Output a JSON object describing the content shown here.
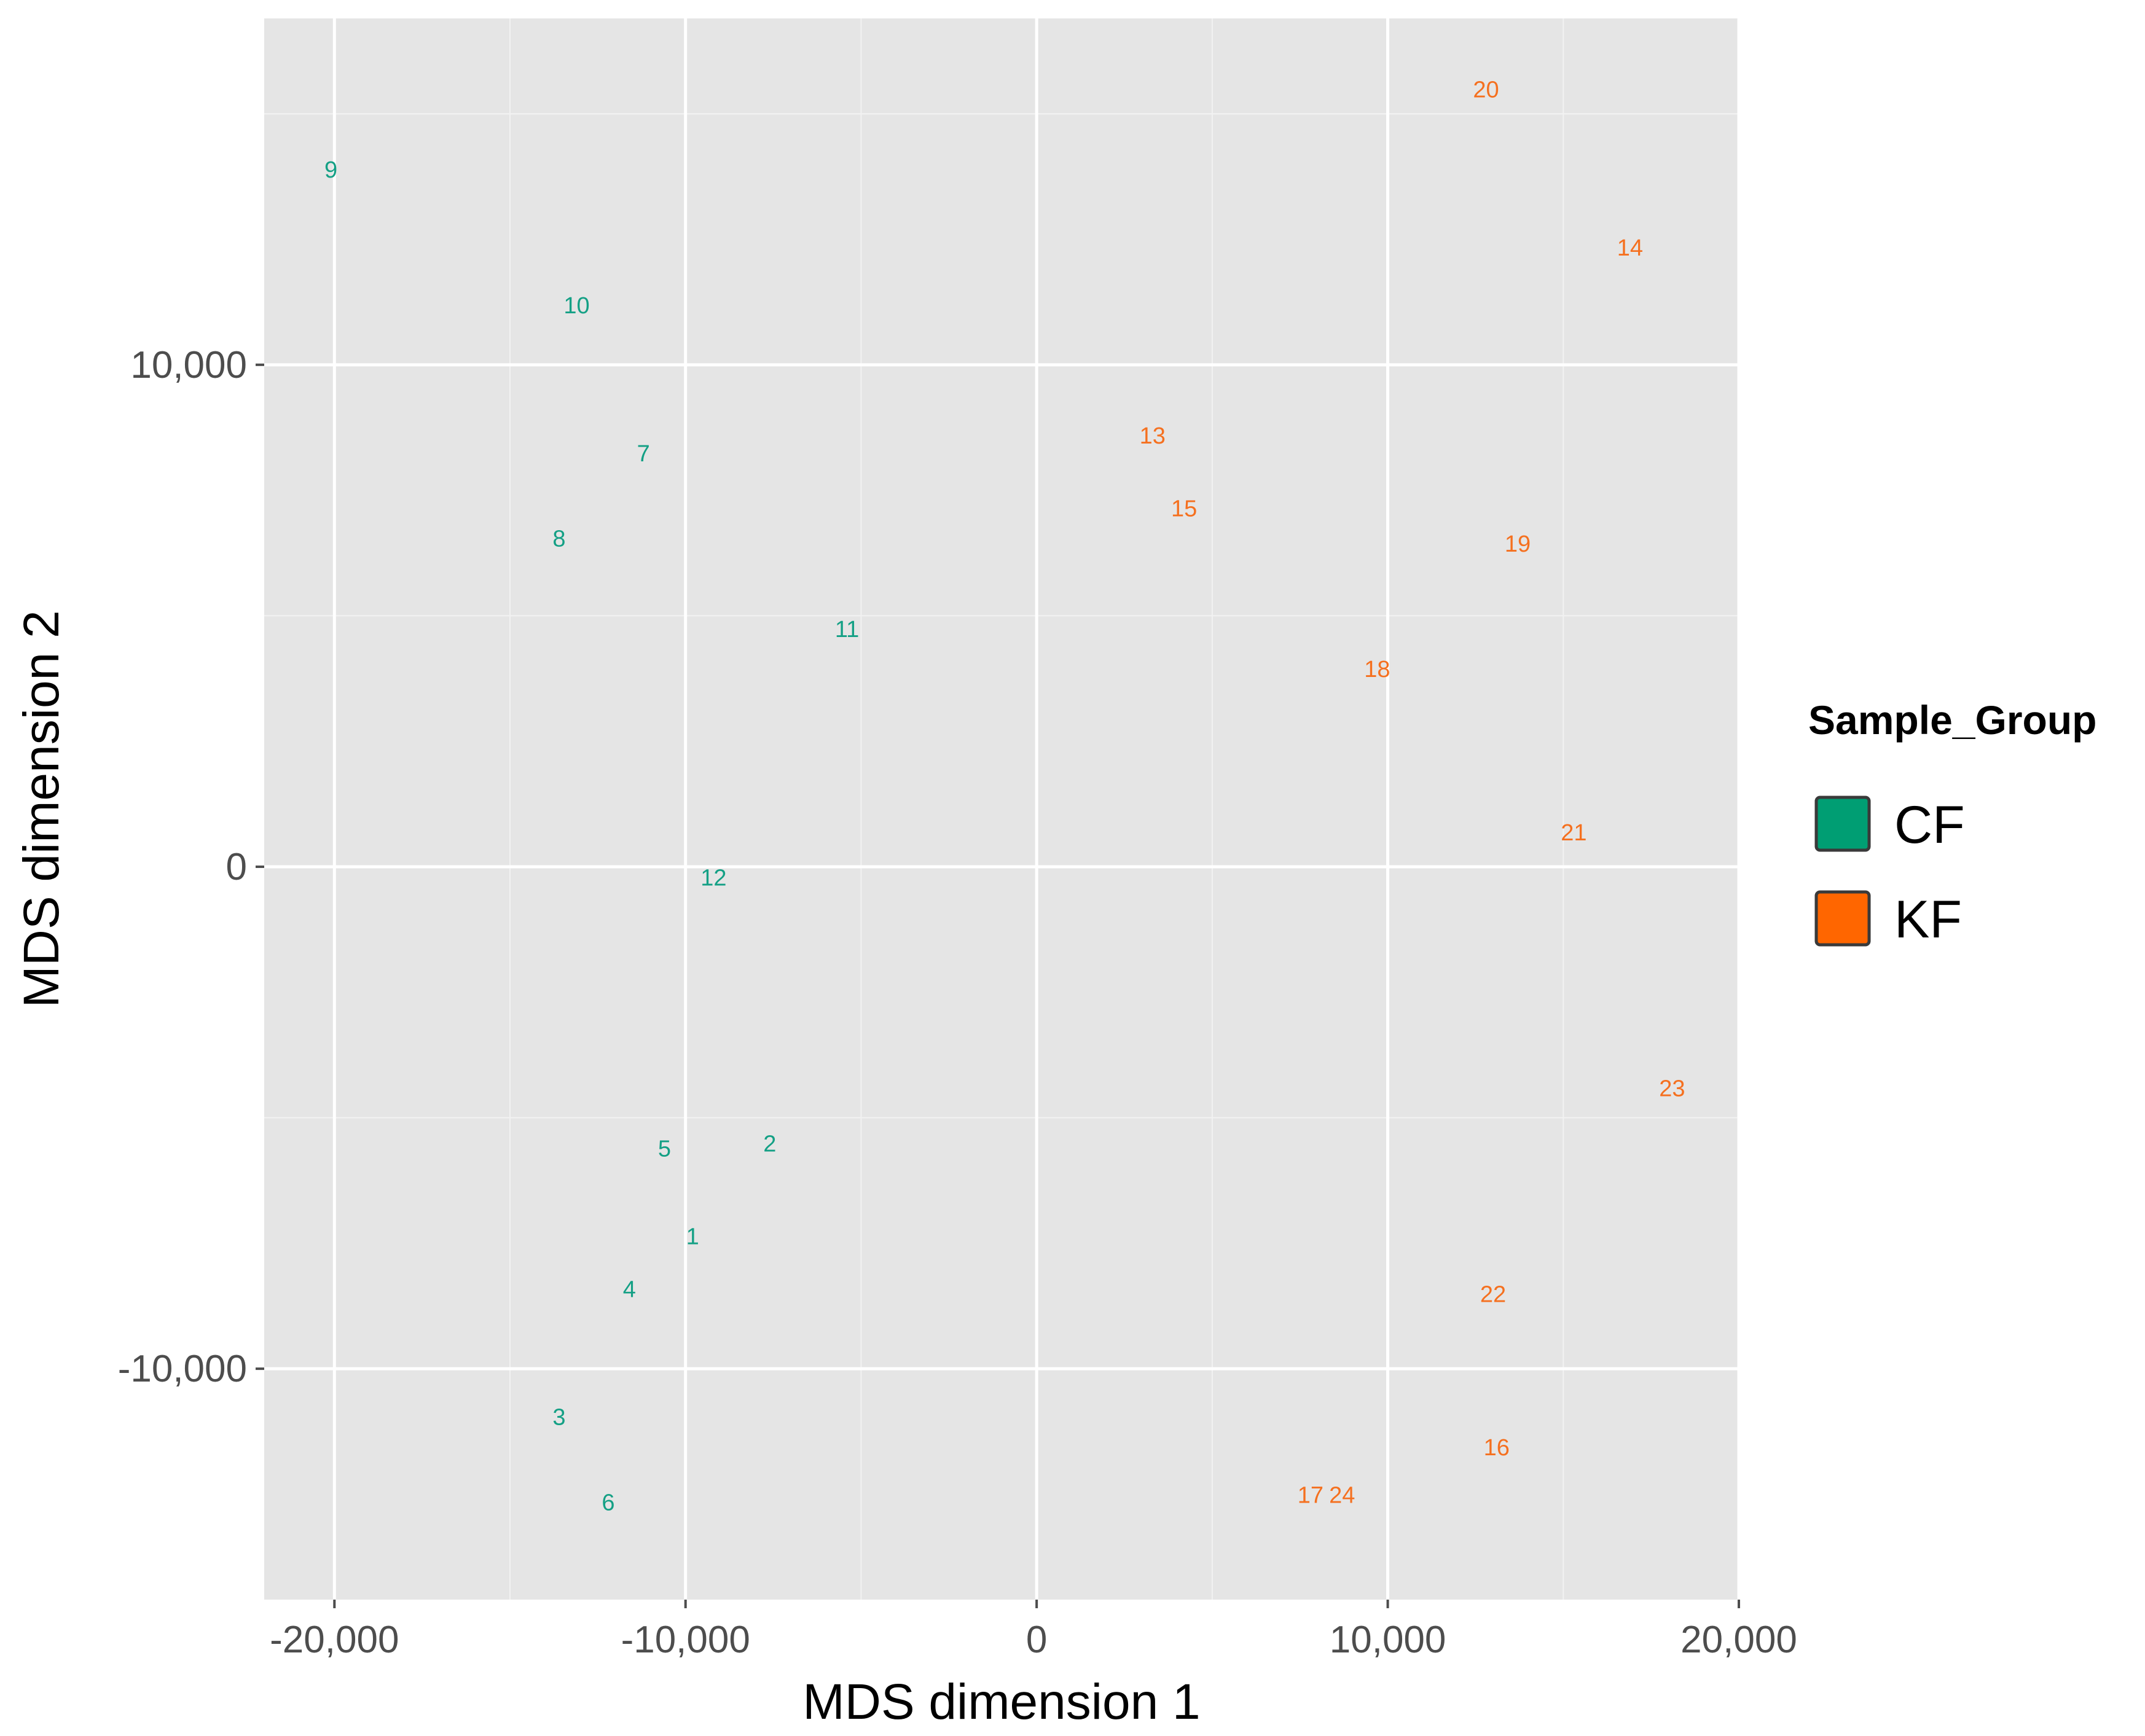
{
  "chart_data": {
    "type": "scatter",
    "title": "",
    "xlabel": "MDS dimension 1",
    "ylabel": "MDS dimension 2",
    "xlim": [
      -22000,
      20000
    ],
    "ylim": [
      -14600,
      16900
    ],
    "x_ticks": [
      -20000,
      -10000,
      0,
      10000,
      20000
    ],
    "x_tick_labels": [
      "-20,000",
      "-10,000",
      "0",
      "10,000",
      "20,000"
    ],
    "y_ticks": [
      -10000,
      0,
      10000
    ],
    "y_tick_labels": [
      "-10,000",
      "0",
      "10,000"
    ],
    "grid": true,
    "legend": {
      "title": "Sample_Group",
      "placement": "right",
      "entries": [
        {
          "label": "CF",
          "color": "#009E73"
        },
        {
          "label": "KF",
          "color": "#FF6600"
        }
      ]
    },
    "series": [
      {
        "name": "CF",
        "color": "#14a085",
        "points": [
          {
            "label": "1",
            "x": -9800,
            "y": -7350
          },
          {
            "label": "2",
            "x": -7600,
            "y": -5500
          },
          {
            "label": "3",
            "x": -13600,
            "y": -10950
          },
          {
            "label": "4",
            "x": -11600,
            "y": -8400
          },
          {
            "label": "5",
            "x": -10600,
            "y": -5600
          },
          {
            "label": "6",
            "x": -12200,
            "y": -12650
          },
          {
            "label": "7",
            "x": -11200,
            "y": 8250
          },
          {
            "label": "8",
            "x": -13600,
            "y": 6550
          },
          {
            "label": "9",
            "x": -20100,
            "y": 13900
          },
          {
            "label": "10",
            "x": -13100,
            "y": 11200
          },
          {
            "label": "11",
            "x": -5400,
            "y": 4750
          },
          {
            "label": "12",
            "x": -9200,
            "y": -200
          }
        ]
      },
      {
        "name": "KF",
        "color": "#f5701f",
        "points": [
          {
            "label": "13",
            "x": 3300,
            "y": 8600
          },
          {
            "label": "14",
            "x": 16900,
            "y": 12350
          },
          {
            "label": "15",
            "x": 4200,
            "y": 7150
          },
          {
            "label": "16",
            "x": 13100,
            "y": -11550
          },
          {
            "label": "17",
            "x": 7800,
            "y": -12500
          },
          {
            "label": "18",
            "x": 9700,
            "y": 3950
          },
          {
            "label": "19",
            "x": 13700,
            "y": 6450
          },
          {
            "label": "20",
            "x": 12800,
            "y": 15500
          },
          {
            "label": "21",
            "x": 15300,
            "y": 700
          },
          {
            "label": "22",
            "x": 13000,
            "y": -8500
          },
          {
            "label": "23",
            "x": 18100,
            "y": -4400
          },
          {
            "label": "24",
            "x": 8700,
            "y": -12500
          }
        ]
      }
    ]
  }
}
